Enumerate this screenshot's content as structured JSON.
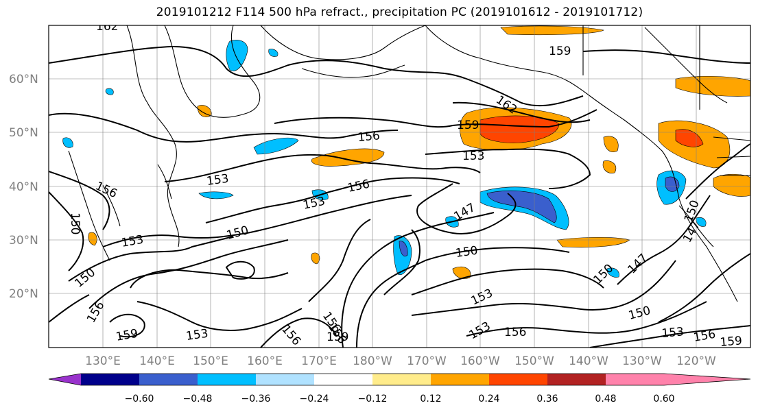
{
  "title": "2019101212 F114 500 hPa refract., precipitation PC (2019101612 - 2019101712)",
  "map": {
    "lat_labels": [
      "60°N",
      "50°N",
      "40°N",
      "30°N",
      "20°N"
    ],
    "lon_labels": [
      "130°E",
      "140°E",
      "150°E",
      "160°E",
      "170°E",
      "180°W",
      "170°W",
      "160°W",
      "150°W",
      "140°W",
      "130°W",
      "120°W"
    ],
    "contour_labels": [
      {
        "text": "162"
      },
      {
        "text": "159"
      },
      {
        "text": "162"
      },
      {
        "text": "159"
      },
      {
        "text": "156"
      },
      {
        "text": "153"
      },
      {
        "text": "153"
      },
      {
        "text": "156"
      },
      {
        "text": "153"
      },
      {
        "text": "156"
      },
      {
        "text": "150"
      },
      {
        "text": "147"
      },
      {
        "text": "150"
      },
      {
        "text": "153"
      },
      {
        "text": "150"
      },
      {
        "text": "150"
      },
      {
        "text": "147"
      },
      {
        "text": "150"
      },
      {
        "text": "147"
      },
      {
        "text": "156"
      },
      {
        "text": "153"
      },
      {
        "text": "150"
      },
      {
        "text": "156"
      },
      {
        "text": "159"
      },
      {
        "text": "153"
      },
      {
        "text": "156"
      },
      {
        "text": "156"
      },
      {
        "text": "159"
      },
      {
        "text": "153"
      },
      {
        "text": "156"
      },
      {
        "text": "150"
      },
      {
        "text": "153"
      },
      {
        "text": "156"
      },
      {
        "text": "159"
      }
    ]
  },
  "colorbar": {
    "ticks": [
      "−0.60",
      "−0.48",
      "−0.36",
      "−0.24",
      "−0.12",
      "0.12",
      "0.24",
      "0.36",
      "0.48",
      "0.60"
    ],
    "colors": [
      "#9932CC",
      "#00008B",
      "#3A5FCD",
      "#00BFFF",
      "#B0E2FF",
      "#FFFFFF",
      "#FFEC8B",
      "#FFA500",
      "#FF4500",
      "#B22222",
      "#FF82AB"
    ]
  }
}
